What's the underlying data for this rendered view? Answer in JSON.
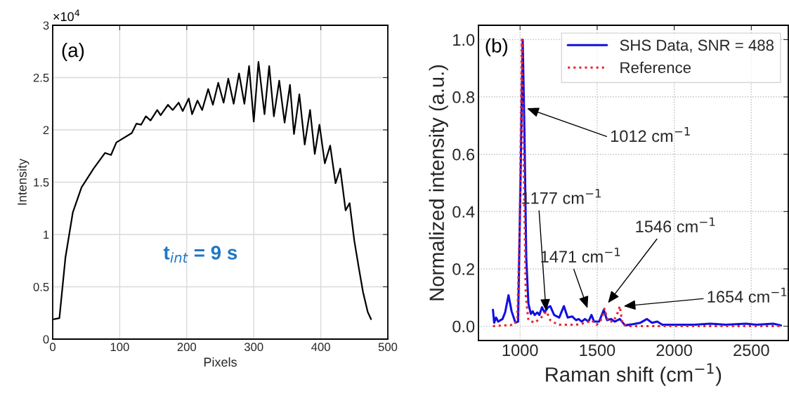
{
  "chart_data": [
    {
      "type": "line",
      "xlabel": "Pixels",
      "ylabel": "Intensity",
      "xlim": [
        0,
        500
      ],
      "ylim": [
        0,
        3
      ],
      "xticks": [
        0,
        100,
        200,
        300,
        400,
        500
      ],
      "yticks": [
        0,
        0.5,
        1,
        1.5,
        2,
        2.5,
        3
      ],
      "grid": true,
      "annotations": [
        "×10$^{4}$",
        "(a)",
        "t$_{int}$ = 9 s"
      ],
      "series": [
        {
          "color": "#000000",
          "line_style": "solid",
          "x": [
            2,
            10,
            19,
            30,
            43,
            61,
            78,
            87,
            95,
            118,
            125,
            132,
            139,
            146,
            156,
            161,
            172,
            179,
            188,
            194,
            203,
            208,
            216,
            223,
            232,
            239,
            247,
            255,
            262,
            270,
            278,
            286,
            293,
            300,
            307,
            316,
            323,
            330,
            338,
            346,
            354,
            360,
            368,
            376,
            384,
            391,
            398,
            406,
            414,
            422,
            429,
            437,
            443,
            450,
            457,
            463,
            470,
            475
          ],
          "values": [
            0.19,
            0.2,
            0.78,
            1.21,
            1.45,
            1.63,
            1.78,
            1.76,
            1.88,
            1.97,
            2.06,
            2.05,
            2.13,
            2.09,
            2.19,
            2.14,
            2.24,
            2.19,
            2.26,
            2.18,
            2.3,
            2.15,
            2.28,
            2.19,
            2.39,
            2.24,
            2.45,
            2.26,
            2.49,
            2.25,
            2.54,
            2.25,
            2.61,
            2.08,
            2.65,
            2.15,
            2.61,
            2.13,
            2.47,
            2.07,
            2.43,
            1.96,
            2.34,
            1.86,
            2.19,
            1.77,
            2.05,
            1.68,
            1.85,
            1.49,
            1.63,
            1.23,
            1.3,
            0.94,
            0.67,
            0.45,
            0.26,
            0.19
          ]
        }
      ]
    },
    {
      "type": "line",
      "xlabel": "Raman shift (cm$^{−1}$)",
      "ylabel": "Normalized intensity (a.u.)",
      "xlim": [
        730,
        2740
      ],
      "ylim": [
        -0.05,
        1.05
      ],
      "xticks": [
        1000,
        1500,
        2000,
        2500
      ],
      "yticks": [
        {
          "value": 0,
          "label": "0.0"
        },
        {
          "value": 0.2,
          "label": "0.2"
        },
        {
          "value": 0.4,
          "label": "0.4"
        },
        {
          "value": 0.6,
          "label": "0.6"
        },
        {
          "value": 0.8,
          "label": "0.8"
        },
        {
          "value": 1.0,
          "label": "1.0"
        }
      ],
      "grid": true,
      "legend": "top right",
      "annotations": [
        "(b)",
        {
          "text": "1012 cm$^{−1}$",
          "x": 1045,
          "y": 0.76
        },
        {
          "text": "1177 cm$^{−1}$",
          "x": 1170,
          "y": 0.04
        },
        {
          "text": "1471 cm$^{−1}$",
          "x": 1446,
          "y": 0.05
        },
        {
          "text": "1546 cm$^{−1}$",
          "x": 1555,
          "y": 0.07
        },
        {
          "text": "1654 cm$^{−1}$",
          "x": 1672,
          "y": 0.07
        }
      ],
      "series": [
        {
          "name": "SHS Data, SNR = 488",
          "color": "#1010e0",
          "line_style": "solid",
          "x": [
            824,
            832,
            844,
            858,
            886,
            903,
            925,
            945,
            970,
            987,
            1003,
            1017,
            1028,
            1040,
            1054,
            1070,
            1082,
            1095,
            1112,
            1125,
            1142,
            1159,
            1182,
            1196,
            1221,
            1254,
            1284,
            1309,
            1338,
            1363,
            1380,
            1400,
            1421,
            1443,
            1463,
            1480,
            1513,
            1543,
            1564,
            1589,
            1614,
            1647,
            1681,
            1731,
            1781,
            1823,
            1856,
            1890,
            1923,
            2032,
            2132,
            2232,
            2333,
            2466,
            2533,
            2642,
            2692
          ],
          "values": [
            0.057,
            0.012,
            0.03,
            0.016,
            0.025,
            0.048,
            0.108,
            0.052,
            0.012,
            0.016,
            0.51,
            1.0,
            0.69,
            0.24,
            0.079,
            0.043,
            0.052,
            0.039,
            0.048,
            0.039,
            0.066,
            0.048,
            0.066,
            0.07,
            0.039,
            0.03,
            0.07,
            0.03,
            0.034,
            0.021,
            0.025,
            0.016,
            0.025,
            0.016,
            0.039,
            0.016,
            0.016,
            0.057,
            0.021,
            0.025,
            0.016,
            0.025,
            0.003,
            0.007,
            0.012,
            0.025,
            0.012,
            0.016,
            0.005,
            0.005,
            0.005,
            0.009,
            0.005,
            0.009,
            0.005,
            0.009,
            0.003
          ]
        },
        {
          "name": "Reference",
          "color": "#e8202a",
          "line_style": "dotted",
          "x": [
            824,
            962,
            982,
            997,
            1012,
            1025,
            1037,
            1054,
            1095,
            1145,
            1171,
            1196,
            1246,
            1363,
            1430,
            1463,
            1497,
            1530,
            1547,
            1572,
            1605,
            1634,
            1647,
            1664,
            1697,
            2032,
            2366,
            2692
          ],
          "values": [
            0,
            0.005,
            0.025,
            0.33,
            1.0,
            0.51,
            0.106,
            0.021,
            0.012,
            0.034,
            0.052,
            0.021,
            0.005,
            0.005,
            0.012,
            0.021,
            0.005,
            0.025,
            0.061,
            0.016,
            0.016,
            0.048,
            0.07,
            0.007,
            0,
            0,
            0,
            0
          ]
        }
      ]
    }
  ]
}
